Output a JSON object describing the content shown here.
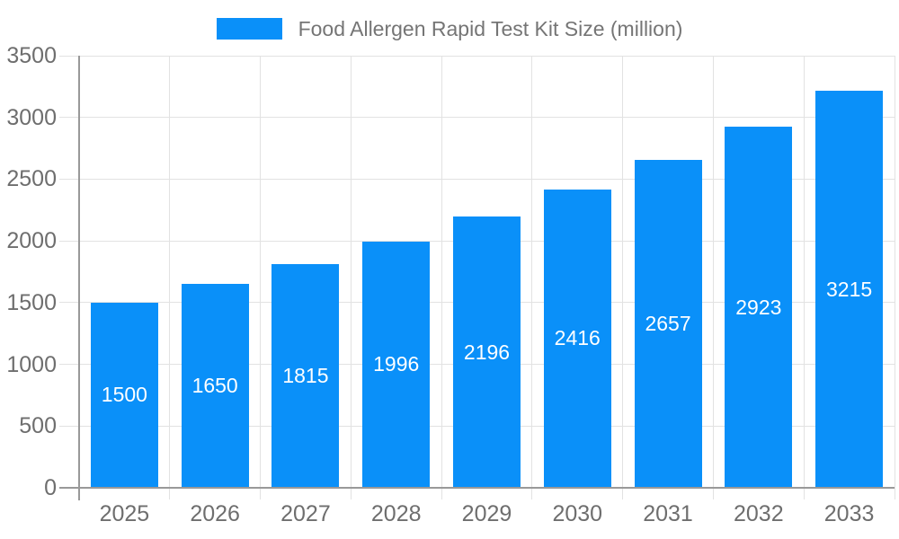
{
  "legend": {
    "label": "Food Allergen Rapid Test Kit Size (million)"
  },
  "chart_data": {
    "type": "bar",
    "title": "Food Allergen Rapid Test Kit Size (million)",
    "categories": [
      "2025",
      "2026",
      "2027",
      "2028",
      "2029",
      "2030",
      "2031",
      "2032",
      "2033"
    ],
    "series": [
      {
        "name": "Food Allergen Rapid Test Kit Size (million)",
        "values": [
          1500,
          1650,
          1815,
          1996,
          2196,
          2416,
          2657,
          2923,
          3215
        ]
      }
    ],
    "value_labels_shown": true,
    "xlabel": "",
    "ylabel": "",
    "ylim": [
      0,
      3500
    ],
    "y_ticks": [
      0,
      500,
      1000,
      1500,
      2000,
      2500,
      3000,
      3500
    ],
    "grid": true,
    "legend_position": "top"
  },
  "colors": {
    "bar": "#0a90f9",
    "value_label": "#ffffff",
    "grid_line": "#e2e2e2",
    "axis_line": "#999999",
    "axis_tick_label": "#6e6e6e",
    "legend_text": "#757575"
  }
}
